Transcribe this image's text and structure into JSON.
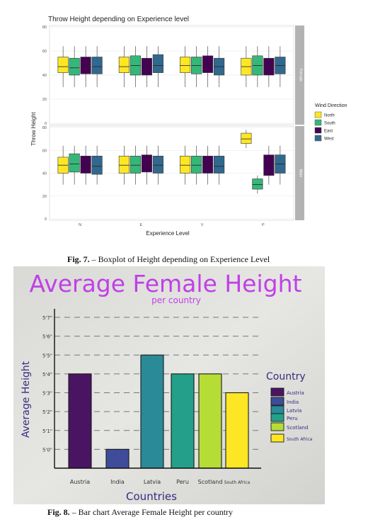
{
  "figure7": {
    "caption_label": "Fig. 7.",
    "caption_text": " – Boxplot of Height depending on Experience Level",
    "chart_data": {
      "type": "boxplot",
      "title": "Throw Height depending on Experience level",
      "xlabel": "Experience Level",
      "ylabel": "Throw Height",
      "categories": [
        "N",
        "E",
        "V",
        "P"
      ],
      "yticks": [
        "0",
        "20",
        "40",
        "60",
        "80"
      ],
      "ylim": [
        0,
        80
      ],
      "legend_title": "Wind Direction",
      "legend_position": "right",
      "series": [
        {
          "name": "North",
          "color": "#fde725"
        },
        {
          "name": "South",
          "color": "#35b779"
        },
        {
          "name": "East",
          "color": "#440154"
        },
        {
          "name": "West",
          "color": "#31688e"
        }
      ],
      "facets": [
        {
          "label": "Female",
          "boxes": [
            [
              [
                30,
                42,
                47,
                55,
                64
              ],
              [
                30,
                40,
                46,
                54,
                64
              ],
              [
                30,
                41,
                48,
                55,
                64
              ],
              [
                30,
                41,
                47,
                55,
                64
              ]
            ],
            [
              [
                30,
                42,
                47,
                55,
                64
              ],
              [
                30,
                40,
                48,
                56,
                64
              ],
              [
                30,
                40,
                47,
                54,
                64
              ],
              [
                30,
                42,
                48,
                57,
                64
              ]
            ],
            [
              [
                30,
                42,
                48,
                55,
                64
              ],
              [
                30,
                41,
                48,
                55,
                64
              ],
              [
                30,
                42,
                48,
                56,
                64
              ],
              [
                30,
                40,
                47,
                54,
                64
              ]
            ],
            [
              [
                30,
                40,
                47,
                54,
                64
              ],
              [
                30,
                40,
                48,
                56,
                64
              ],
              [
                30,
                40,
                48,
                54,
                64
              ],
              [
                30,
                41,
                48,
                55,
                64
              ]
            ]
          ]
        },
        {
          "label": "Male",
          "boxes": [
            [
              [
                30,
                40,
                47,
                54,
                64
              ],
              [
                30,
                41,
                48,
                57,
                64
              ],
              [
                30,
                40,
                47,
                55,
                64
              ],
              [
                30,
                39,
                46,
                55,
                64
              ]
            ],
            [
              [
                30,
                40,
                47,
                55,
                64
              ],
              [
                30,
                40,
                47,
                55,
                64
              ],
              [
                30,
                41,
                48,
                56,
                64
              ],
              [
                30,
                40,
                47,
                55,
                64
              ]
            ],
            [
              [
                30,
                40,
                47,
                55,
                64
              ],
              [
                30,
                40,
                47,
                55,
                64
              ],
              [
                30,
                40,
                47,
                55,
                64
              ],
              [
                30,
                40,
                46,
                55,
                64
              ]
            ],
            [
              [
                62,
                66,
                70,
                75,
                78
              ],
              [
                22,
                26,
                30,
                35,
                38
              ],
              [
                30,
                38,
                47,
                56,
                64
              ],
              [
                30,
                40,
                48,
                56,
                64
              ]
            ]
          ]
        }
      ]
    }
  },
  "figure8": {
    "caption_label": "Fig. 8.",
    "caption_text": " – Bar chart Average Female Height per country",
    "chart_data": {
      "type": "bar",
      "title": "Average Female Height",
      "subtitle": "per country",
      "xlabel": "Countries",
      "ylabel": "Average Height",
      "yticks": [
        "5'7\"",
        "5'6\"",
        "5'5\"",
        "5'4\"",
        "5'3\"",
        "5'2\"",
        "5'1\"",
        "5'0\""
      ],
      "categories": [
        "Austria",
        "India",
        "Latvia",
        "Peru",
        "Scotland",
        "South Africa"
      ],
      "category_labels": [
        "Austria",
        "India",
        "Latvia",
        "Peru",
        "Scotland",
        "South Africa"
      ],
      "values": [
        64,
        60,
        65,
        64,
        64,
        63
      ],
      "colors": [
        "#4a1463",
        "#3e4c9a",
        "#2a8a98",
        "#24a08a",
        "#b6dc36",
        "#fde725"
      ],
      "legend_title": "Country",
      "legend_position": "right",
      "legend_labels": [
        "Austria",
        "India",
        "Latvia",
        "Peru",
        "Scotland",
        "South Africa"
      ]
    }
  }
}
